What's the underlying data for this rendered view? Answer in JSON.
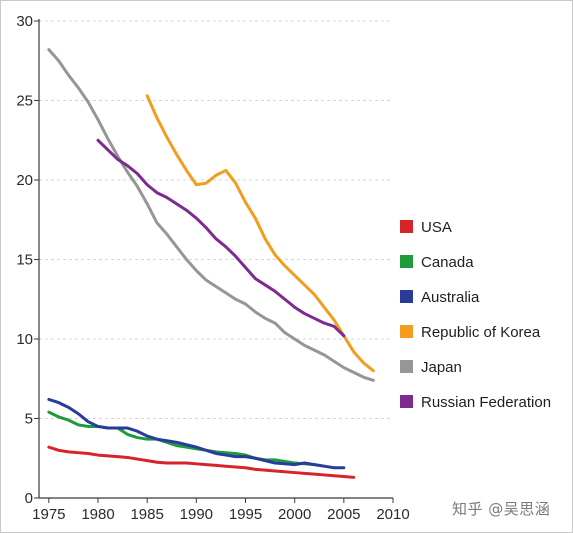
{
  "chart_data": {
    "type": "line",
    "title": "",
    "xlabel": "",
    "ylabel": "",
    "xlim": [
      1974,
      2010
    ],
    "ylim": [
      0,
      30
    ],
    "x_ticks": [
      1975,
      1980,
      1985,
      1990,
      1995,
      2000,
      2005,
      2010
    ],
    "y_ticks": [
      0,
      5,
      10,
      15,
      20,
      25,
      30
    ],
    "grid": "horizontal dashed",
    "legend_position": "right",
    "series": [
      {
        "name": "USA",
        "color": "#d7232a",
        "points": [
          [
            1975,
            3.2
          ],
          [
            1976,
            3.0
          ],
          [
            1977,
            2.9
          ],
          [
            1978,
            2.85
          ],
          [
            1979,
            2.8
          ],
          [
            1980,
            2.7
          ],
          [
            1981,
            2.65
          ],
          [
            1982,
            2.6
          ],
          [
            1983,
            2.55
          ],
          [
            1984,
            2.45
          ],
          [
            1985,
            2.35
          ],
          [
            1986,
            2.25
          ],
          [
            1987,
            2.2
          ],
          [
            1988,
            2.2
          ],
          [
            1989,
            2.2
          ],
          [
            1990,
            2.15
          ],
          [
            1991,
            2.1
          ],
          [
            1992,
            2.05
          ],
          [
            1993,
            2.0
          ],
          [
            1994,
            1.95
          ],
          [
            1995,
            1.9
          ],
          [
            1996,
            1.8
          ],
          [
            1997,
            1.75
          ],
          [
            1998,
            1.7
          ],
          [
            1999,
            1.65
          ],
          [
            2000,
            1.6
          ],
          [
            2001,
            1.55
          ],
          [
            2002,
            1.5
          ],
          [
            2003,
            1.45
          ],
          [
            2004,
            1.4
          ],
          [
            2005,
            1.35
          ],
          [
            2006,
            1.3
          ]
        ]
      },
      {
        "name": "Canada",
        "color": "#1f9a3c",
        "points": [
          [
            1975,
            5.4
          ],
          [
            1976,
            5.1
          ],
          [
            1977,
            4.9
          ],
          [
            1978,
            4.6
          ],
          [
            1979,
            4.5
          ],
          [
            1980,
            4.5
          ],
          [
            1981,
            4.4
          ],
          [
            1982,
            4.4
          ],
          [
            1983,
            4.0
          ],
          [
            1984,
            3.8
          ],
          [
            1985,
            3.7
          ],
          [
            1986,
            3.7
          ],
          [
            1987,
            3.5
          ],
          [
            1988,
            3.3
          ],
          [
            1989,
            3.2
          ],
          [
            1990,
            3.1
          ],
          [
            1991,
            3.0
          ],
          [
            1992,
            2.9
          ],
          [
            1993,
            2.85
          ],
          [
            1994,
            2.8
          ],
          [
            1995,
            2.7
          ],
          [
            1996,
            2.5
          ],
          [
            1997,
            2.4
          ],
          [
            1998,
            2.4
          ],
          [
            1999,
            2.3
          ],
          [
            2000,
            2.2
          ],
          [
            2001,
            2.15
          ],
          [
            2002,
            2.1
          ],
          [
            2003,
            2.0
          ]
        ]
      },
      {
        "name": "Australia",
        "color": "#283d9a",
        "points": [
          [
            1975,
            6.2
          ],
          [
            1976,
            6.0
          ],
          [
            1977,
            5.7
          ],
          [
            1978,
            5.3
          ],
          [
            1979,
            4.8
          ],
          [
            1980,
            4.5
          ],
          [
            1981,
            4.4
          ],
          [
            1982,
            4.4
          ],
          [
            1983,
            4.4
          ],
          [
            1984,
            4.2
          ],
          [
            1985,
            3.9
          ],
          [
            1986,
            3.7
          ],
          [
            1987,
            3.6
          ],
          [
            1988,
            3.5
          ],
          [
            1989,
            3.35
          ],
          [
            1990,
            3.2
          ],
          [
            1991,
            3.0
          ],
          [
            1992,
            2.8
          ],
          [
            1993,
            2.7
          ],
          [
            1994,
            2.6
          ],
          [
            1995,
            2.6
          ],
          [
            1996,
            2.5
          ],
          [
            1997,
            2.35
          ],
          [
            1998,
            2.2
          ],
          [
            1999,
            2.15
          ],
          [
            2000,
            2.1
          ],
          [
            2001,
            2.2
          ],
          [
            2002,
            2.1
          ],
          [
            2003,
            2.0
          ],
          [
            2004,
            1.9
          ],
          [
            2005,
            1.9
          ]
        ]
      },
      {
        "name": "Republic of Korea",
        "color": "#f39c1e",
        "points": [
          [
            1985,
            25.3
          ],
          [
            1986,
            23.9
          ],
          [
            1987,
            22.7
          ],
          [
            1988,
            21.6
          ],
          [
            1989,
            20.6
          ],
          [
            1990,
            19.7
          ],
          [
            1991,
            19.8
          ],
          [
            1992,
            20.3
          ],
          [
            1993,
            20.6
          ],
          [
            1994,
            19.8
          ],
          [
            1995,
            18.6
          ],
          [
            1996,
            17.6
          ],
          [
            1997,
            16.3
          ],
          [
            1998,
            15.3
          ],
          [
            1999,
            14.6
          ],
          [
            2000,
            14.0
          ],
          [
            2001,
            13.4
          ],
          [
            2002,
            12.8
          ],
          [
            2003,
            12.0
          ],
          [
            2004,
            11.2
          ],
          [
            2005,
            10.2
          ],
          [
            2006,
            9.2
          ],
          [
            2007,
            8.5
          ],
          [
            2008,
            8.0
          ]
        ]
      },
      {
        "name": "Japan",
        "color": "#969696",
        "points": [
          [
            1975,
            28.2
          ],
          [
            1976,
            27.5
          ],
          [
            1977,
            26.6
          ],
          [
            1978,
            25.8
          ],
          [
            1979,
            24.9
          ],
          [
            1980,
            23.8
          ],
          [
            1981,
            22.6
          ],
          [
            1982,
            21.5
          ],
          [
            1983,
            20.5
          ],
          [
            1984,
            19.6
          ],
          [
            1985,
            18.5
          ],
          [
            1986,
            17.3
          ],
          [
            1987,
            16.6
          ],
          [
            1988,
            15.8
          ],
          [
            1989,
            15.0
          ],
          [
            1990,
            14.3
          ],
          [
            1991,
            13.7
          ],
          [
            1992,
            13.3
          ],
          [
            1993,
            12.9
          ],
          [
            1994,
            12.5
          ],
          [
            1995,
            12.2
          ],
          [
            1996,
            11.7
          ],
          [
            1997,
            11.3
          ],
          [
            1998,
            11.0
          ],
          [
            1999,
            10.4
          ],
          [
            2000,
            10.0
          ],
          [
            2001,
            9.6
          ],
          [
            2002,
            9.3
          ],
          [
            2003,
            9.0
          ],
          [
            2004,
            8.6
          ],
          [
            2005,
            8.2
          ],
          [
            2006,
            7.9
          ],
          [
            2007,
            7.6
          ],
          [
            2008,
            7.4
          ]
        ]
      },
      {
        "name": "Russian Federation",
        "color": "#7e2b8f",
        "points": [
          [
            1980,
            22.5
          ],
          [
            1981,
            21.9
          ],
          [
            1982,
            21.3
          ],
          [
            1983,
            20.9
          ],
          [
            1984,
            20.4
          ],
          [
            1985,
            19.7
          ],
          [
            1986,
            19.2
          ],
          [
            1987,
            18.9
          ],
          [
            1988,
            18.5
          ],
          [
            1989,
            18.1
          ],
          [
            1990,
            17.6
          ],
          [
            1991,
            17.0
          ],
          [
            1992,
            16.3
          ],
          [
            1993,
            15.8
          ],
          [
            1994,
            15.2
          ],
          [
            1995,
            14.5
          ],
          [
            1996,
            13.8
          ],
          [
            1997,
            13.4
          ],
          [
            1998,
            13.0
          ],
          [
            1999,
            12.5
          ],
          [
            2000,
            12.0
          ],
          [
            2001,
            11.6
          ],
          [
            2002,
            11.3
          ],
          [
            2003,
            11.0
          ],
          [
            2004,
            10.8
          ],
          [
            2005,
            10.2
          ]
        ]
      }
    ]
  },
  "watermark_text": "知乎 @吴思涵"
}
